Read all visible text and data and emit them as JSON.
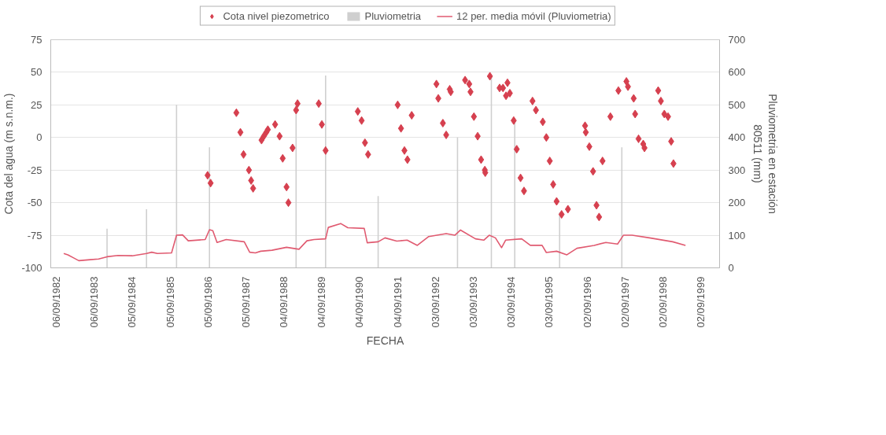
{
  "chart_data": {
    "type": "scatter",
    "xlabel": "FECHA",
    "ylabel": "Cota del agua (m s.n.m.)",
    "y2label": "Pluviometria en estación\n80511 (mm)",
    "xlim": [
      "1982-07-15",
      "2000-03-01"
    ],
    "xticks": [
      {
        "value": "1982-09-06",
        "label": "06/09/1982"
      },
      {
        "value": "1983-09-06",
        "label": "06/09/1983"
      },
      {
        "value": "1984-09-05",
        "label": "05/09/1984"
      },
      {
        "value": "1985-09-05",
        "label": "05/09/1985"
      },
      {
        "value": "1986-09-05",
        "label": "05/09/1986"
      },
      {
        "value": "1987-09-05",
        "label": "05/09/1987"
      },
      {
        "value": "1988-09-04",
        "label": "04/09/1988"
      },
      {
        "value": "1989-09-04",
        "label": "04/09/1989"
      },
      {
        "value": "1990-09-04",
        "label": "04/09/1990"
      },
      {
        "value": "1991-09-04",
        "label": "04/09/1991"
      },
      {
        "value": "1992-09-03",
        "label": "03/09/1992"
      },
      {
        "value": "1993-09-03",
        "label": "03/09/1993"
      },
      {
        "value": "1994-09-03",
        "label": "03/09/1994"
      },
      {
        "value": "1995-09-03",
        "label": "03/09/1995"
      },
      {
        "value": "1996-09-02",
        "label": "02/09/1996"
      },
      {
        "value": "1997-09-02",
        "label": "02/09/1997"
      },
      {
        "value": "1998-09-02",
        "label": "02/09/1998"
      },
      {
        "value": "1999-09-02",
        "label": "02/09/1999"
      }
    ],
    "ylim": [
      -100,
      75
    ],
    "yticks": [
      -100,
      -75,
      -50,
      -25,
      0,
      25,
      50,
      75
    ],
    "y2lim": [
      0,
      700
    ],
    "y2ticks": [
      0,
      100,
      200,
      300,
      400,
      500,
      600,
      700
    ],
    "grid": "y",
    "legend": "top",
    "series": [
      {
        "name": "Cota nivel piezometrico",
        "marker": "diamond",
        "color": "#d6404f",
        "x": [
          "1986-09-02",
          "1986-10-01",
          "1987-06-06",
          "1987-07-15",
          "1987-08-14",
          "1987-10-05",
          "1987-10-26",
          "1987-11-14",
          "1988-02-03",
          "1988-02-25",
          "1988-03-20",
          "1988-04-04",
          "1988-06-13",
          "1988-07-26",
          "1988-08-25",
          "1988-10-01",
          "1988-10-19",
          "1988-11-28",
          "1989-01-01",
          "1989-01-15",
          "1989-08-07",
          "1989-09-06",
          "1989-10-12",
          "1990-08-18",
          "1990-09-24",
          "1990-10-26",
          "1990-11-25",
          "1991-09-06",
          "1991-10-08",
          "1991-11-10",
          "1991-12-09",
          "1992-01-19",
          "1992-09-13",
          "1992-10-01",
          "1992-11-14",
          "1992-12-16",
          "1993-01-19",
          "1993-01-29",
          "1993-06-16",
          "1993-07-26",
          "1993-08-07",
          "1993-09-09",
          "1993-10-15",
          "1993-11-17",
          "1993-12-23",
          "1993-12-27",
          "1994-02-10",
          "1994-05-14",
          "1994-06-16",
          "1994-07-15",
          "1994-07-29",
          "1994-08-21",
          "1994-09-27",
          "1994-10-26",
          "1994-12-02",
          "1995-01-04",
          "1995-03-27",
          "1995-04-29",
          "1995-07-04",
          "1995-08-07",
          "1995-09-09",
          "1995-10-12",
          "1995-11-14",
          "1996-01-01",
          "1996-03-02",
          "1996-08-14",
          "1996-08-21",
          "1996-09-24",
          "1996-10-30",
          "1996-12-02",
          "1996-12-27",
          "1997-01-29",
          "1997-04-15",
          "1997-07-01",
          "1997-09-16",
          "1997-10-01",
          "1997-11-25",
          "1997-12-09",
          "1998-01-11",
          "1998-02-25",
          "1998-03-09",
          "1998-07-19",
          "1998-08-14",
          "1998-09-16",
          "1998-10-22",
          "1998-11-21",
          "1998-12-13"
        ],
        "values": [
          -29,
          -35,
          19,
          4,
          -13,
          -25,
          -33,
          -39,
          -2,
          1,
          4,
          6,
          10,
          1,
          -16,
          -38,
          -50,
          -8,
          21,
          26,
          26,
          10,
          -10,
          20,
          13,
          -4,
          -13,
          25,
          7,
          -10,
          -17,
          17,
          41,
          30,
          11,
          2,
          37,
          35,
          44,
          41,
          35,
          16,
          1,
          -17,
          -25,
          -27,
          47,
          38,
          38,
          32,
          42,
          34,
          13,
          -9,
          -31,
          -41,
          28,
          21,
          12,
          0,
          -18,
          -36,
          -49,
          -59,
          -55,
          9,
          4,
          -7,
          -26,
          -52,
          -61,
          -18,
          16,
          36,
          43,
          39,
          30,
          18,
          -1,
          -5,
          -8,
          36,
          28,
          18,
          16,
          -3,
          -20
        ]
      },
      {
        "name": "Pluviometria",
        "type": "bar",
        "axis": "y2",
        "color": "#cfcfcf",
        "x": [
          "1984-01-08",
          "1985-01-22",
          "1985-11-07",
          "1986-09-20",
          "1989-01-01",
          "1989-10-12",
          "1991-03-02",
          "1993-04-04",
          "1994-02-24",
          "1994-10-07",
          "1995-12-13",
          "1997-08-03"
        ],
        "values": [
          120,
          180,
          500,
          370,
          500,
          590,
          220,
          400,
          590,
          450,
          170,
          370
        ]
      },
      {
        "name": "12 per. media móvil (Pluviometria)",
        "type": "line",
        "axis": "y2",
        "color": "#e05a70",
        "x": [
          "1982-11-17",
          "1982-12-27",
          "1983-02-17",
          "1983-04-11",
          "1983-07-29",
          "1983-10-19",
          "1984-01-08",
          "1984-04-22",
          "1984-09-06",
          "1985-01-22",
          "1985-03-13",
          "1985-05-07",
          "1985-09-20",
          "1985-11-07",
          "1986-01-04",
          "1986-02-28",
          "1986-08-10",
          "1986-09-20",
          "1986-10-22",
          "1986-12-02",
          "1987-02-28",
          "1987-08-21",
          "1987-10-12",
          "1987-12-06",
          "1988-01-26",
          "1988-05-14",
          "1988-10-01",
          "1989-01-29",
          "1989-04-15",
          "1989-06-23",
          "1989-10-12",
          "1989-11-07",
          "1990-03-06",
          "1990-05-14",
          "1990-10-19",
          "1990-11-17",
          "1991-03-02",
          "1991-05-07",
          "1991-08-28",
          "1991-12-06",
          "1992-03-13",
          "1992-07-01",
          "1992-12-16",
          "1993-03-09",
          "1993-05-03",
          "1993-09-24",
          "1993-12-13",
          "1994-02-03",
          "1994-04-04",
          "1994-06-02",
          "1994-07-11",
          "1994-12-13",
          "1995-03-06",
          "1995-06-27",
          "1995-08-07",
          "1995-11-14",
          "1996-02-21",
          "1996-05-28",
          "1996-11-10",
          "1997-03-02",
          "1997-06-23",
          "1997-08-18",
          "1997-11-10",
          "1998-04-26",
          "1998-12-06",
          "1999-04-08"
        ],
        "values": [
          44,
          40,
          31,
          22,
          25,
          27,
          34,
          38,
          37,
          44,
          48,
          44,
          46,
          100,
          101,
          83,
          87,
          117,
          114,
          78,
          87,
          80,
          48,
          46,
          51,
          54,
          63,
          57,
          83,
          87,
          89,
          124,
          136,
          123,
          121,
          77,
          80,
          92,
          82,
          85,
          69,
          96,
          105,
          100,
          116,
          89,
          85,
          100,
          92,
          62,
          85,
          89,
          69,
          69,
          47,
          51,
          40,
          60,
          69,
          78,
          73,
          100,
          100,
          92,
          80,
          69
        ]
      }
    ]
  }
}
